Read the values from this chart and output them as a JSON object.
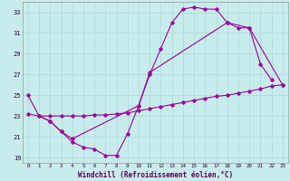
{
  "xlabel": "Windchill (Refroidissement éolien,°C)",
  "background_color": "#c8ecec",
  "grid_color": "#b0dede",
  "line_color": "#990099",
  "xlim": [
    -0.5,
    23.5
  ],
  "ylim": [
    18.5,
    34.0
  ],
  "yticks": [
    19,
    21,
    23,
    25,
    27,
    29,
    31,
    33
  ],
  "xticks": [
    0,
    1,
    2,
    3,
    4,
    5,
    6,
    7,
    8,
    9,
    10,
    11,
    12,
    13,
    14,
    15,
    16,
    17,
    18,
    19,
    20,
    21,
    22,
    23
  ],
  "series": [
    {
      "x": [
        0,
        1,
        2,
        3,
        4,
        5,
        6,
        7,
        8,
        9,
        10,
        11,
        12,
        13,
        14,
        15,
        16,
        17,
        18,
        19,
        20,
        21,
        22
      ],
      "y": [
        25,
        23,
        22.5,
        21.5,
        20.5,
        20.0,
        19.8,
        19.2,
        19.2,
        21.3,
        24.0,
        27.0,
        29.5,
        32.0,
        33.3,
        33.5,
        33.3,
        33.3,
        32.0,
        31.5,
        31.5,
        28.0,
        26.5
      ]
    },
    {
      "x": [
        1,
        2,
        3,
        4,
        10,
        11,
        18,
        20,
        23
      ],
      "y": [
        23.0,
        22.5,
        21.5,
        20.8,
        24.0,
        27.2,
        32.0,
        31.5,
        26.0
      ]
    },
    {
      "x": [
        0,
        1,
        2,
        3,
        4,
        5,
        6,
        7,
        8,
        9,
        10,
        11,
        12,
        13,
        14,
        15,
        16,
        17,
        18,
        19,
        20,
        21,
        22,
        23
      ],
      "y": [
        23.2,
        23.0,
        23.0,
        23.0,
        23.0,
        23.0,
        23.1,
        23.1,
        23.2,
        23.3,
        23.5,
        23.7,
        23.9,
        24.1,
        24.3,
        24.5,
        24.7,
        24.9,
        25.0,
        25.2,
        25.4,
        25.6,
        25.9,
        26.0
      ]
    }
  ]
}
